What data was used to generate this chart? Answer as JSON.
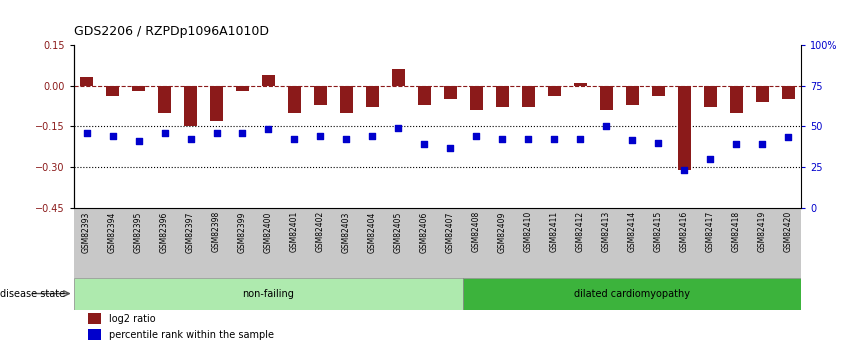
{
  "title": "GDS2206 / RZPDp1096A1010D",
  "samples": [
    "GSM82393",
    "GSM82394",
    "GSM82395",
    "GSM82396",
    "GSM82397",
    "GSM82398",
    "GSM82399",
    "GSM82400",
    "GSM82401",
    "GSM82402",
    "GSM82403",
    "GSM82404",
    "GSM82405",
    "GSM82406",
    "GSM82407",
    "GSM82408",
    "GSM82409",
    "GSM82410",
    "GSM82411",
    "GSM82412",
    "GSM82413",
    "GSM82414",
    "GSM82415",
    "GSM82416",
    "GSM82417",
    "GSM82418",
    "GSM82419",
    "GSM82420"
  ],
  "log2_ratio": [
    0.03,
    -0.04,
    -0.02,
    -0.1,
    -0.15,
    -0.13,
    -0.02,
    0.04,
    -0.1,
    -0.07,
    -0.1,
    -0.08,
    0.06,
    -0.07,
    -0.05,
    -0.09,
    -0.08,
    -0.08,
    -0.04,
    0.01,
    -0.09,
    -0.07,
    -0.04,
    -0.31,
    -0.08,
    -0.1,
    -0.06,
    -0.05
  ],
  "percentile": [
    -0.175,
    -0.185,
    -0.205,
    -0.175,
    -0.195,
    -0.175,
    -0.175,
    -0.16,
    -0.195,
    -0.185,
    -0.195,
    -0.185,
    -0.155,
    -0.215,
    -0.23,
    -0.185,
    -0.195,
    -0.195,
    -0.195,
    -0.195,
    -0.15,
    -0.2,
    -0.21,
    -0.31,
    -0.27,
    -0.215,
    -0.215,
    -0.19
  ],
  "non_failing_count": 15,
  "ylim": [
    -0.45,
    0.15
  ],
  "yticks": [
    0.15,
    0.0,
    -0.15,
    -0.3,
    -0.45
  ],
  "right_ytick_labels": [
    "100%",
    "75",
    "50",
    "25",
    "0"
  ],
  "hlines": [
    -0.15,
    -0.3
  ],
  "bar_color": "#8B1A1A",
  "pct_color": "#0000CC",
  "nonfailing_color": "#AEEAAE",
  "cardiomyopathy_color": "#3CB33C",
  "xlabel_bg": "#C8C8C8"
}
